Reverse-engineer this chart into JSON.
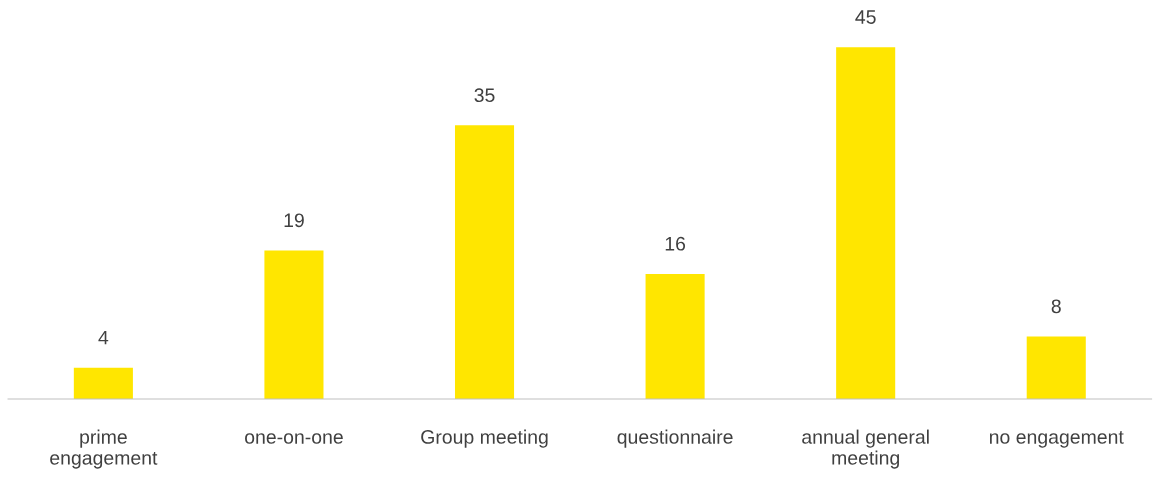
{
  "chart_data": {
    "type": "bar",
    "categories": [
      "prime\nengagement",
      "one-on-one",
      "Group meeting",
      "questionnaire",
      "annual general\nmeeting",
      "no engagement"
    ],
    "values": [
      4,
      19,
      35,
      16,
      45,
      8
    ],
    "color": "#ffe600",
    "data_labels": true,
    "grid": false,
    "legend": false
  }
}
